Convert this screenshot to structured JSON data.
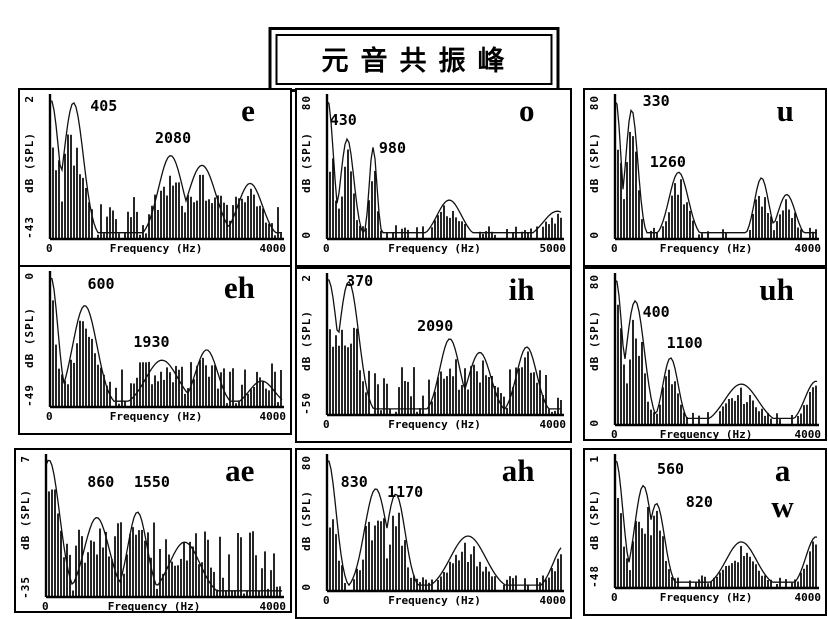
{
  "title": "元音共振峰",
  "shared": {
    "ylabel": "dB (SPL)",
    "xlabel": "Frequency (Hz)",
    "x_min": "0"
  },
  "chart_data": [
    {
      "id": "e",
      "type": "line",
      "vowel": "e",
      "title": "vowel e spectrum",
      "ylabel": "dB (SPL)",
      "xlabel": "Frequency (Hz)",
      "y_top": "2",
      "y_bottom": "-43",
      "x_min": "0",
      "x_max": "4000",
      "xlim": [
        0,
        4000
      ],
      "formants": [
        {
          "label": "405",
          "f": 405,
          "lx": 0.26,
          "ly": 0.04
        },
        {
          "label": "2080",
          "f": 2080,
          "lx": 0.5,
          "ly": 0.22
        }
      ],
      "envelope_peaks": [
        [
          15,
          1.0,
          140
        ],
        [
          405,
          0.98,
          170
        ],
        [
          2080,
          0.6,
          210
        ],
        [
          2620,
          0.53,
          240
        ],
        [
          3450,
          0.4,
          210
        ]
      ],
      "render": {
        "noise": 0.32,
        "seed": 11
      }
    },
    {
      "id": "o",
      "type": "line",
      "vowel": "o",
      "title": "vowel o spectrum",
      "ylabel": "dB (SPL)",
      "xlabel": "Frequency (Hz)",
      "y_top": "80",
      "y_bottom": "0",
      "x_min": "0",
      "x_max": "5000",
      "xlim": [
        0,
        5000
      ],
      "formants": [
        {
          "label": "430",
          "f": 430,
          "lx": 0.12,
          "ly": 0.12
        },
        {
          "label": "980",
          "f": 980,
          "lx": 0.3,
          "ly": 0.28
        }
      ],
      "envelope_peaks": [
        [
          15,
          1.0,
          120
        ],
        [
          430,
          0.72,
          140
        ],
        [
          980,
          0.66,
          80
        ],
        [
          2600,
          0.28,
          260
        ],
        [
          4900,
          0.2,
          300
        ]
      ],
      "render": {
        "noise": 0.1,
        "seed": 22
      }
    },
    {
      "id": "u",
      "type": "line",
      "vowel": "u",
      "title": "vowel u spectrum",
      "ylabel": "dB (SPL)",
      "xlabel": "Frequency (Hz)",
      "y_top": "80",
      "y_bottom": "0",
      "x_min": "0",
      "x_max": "4000",
      "xlim": [
        0,
        4000
      ],
      "formants": [
        {
          "label": "330",
          "f": 330,
          "lx": 0.24,
          "ly": 0.01
        },
        {
          "label": "1260",
          "f": 1260,
          "lx": 0.27,
          "ly": 0.36
        }
      ],
      "envelope_peaks": [
        [
          15,
          1.0,
          100
        ],
        [
          330,
          0.93,
          120
        ],
        [
          1260,
          0.48,
          190
        ],
        [
          2900,
          0.44,
          140
        ],
        [
          3400,
          0.32,
          170
        ]
      ],
      "render": {
        "noise": 0.08,
        "seed": 33
      }
    },
    {
      "id": "eh",
      "type": "line",
      "vowel": "eh",
      "title": "vowel eh spectrum",
      "ylabel": "dB (SPL)",
      "xlabel": "Frequency (Hz)",
      "y_top": "0",
      "y_bottom": "-49",
      "x_min": "0",
      "x_max": "4000",
      "xlim": [
        0,
        4000
      ],
      "formants": [
        {
          "label": "600",
          "f": 600,
          "lx": 0.25,
          "ly": 0.05
        },
        {
          "label": "1930",
          "f": 1930,
          "lx": 0.42,
          "ly": 0.4
        }
      ],
      "envelope_peaks": [
        [
          15,
          1.0,
          120
        ],
        [
          600,
          0.78,
          210
        ],
        [
          1930,
          0.36,
          280
        ],
        [
          2700,
          0.44,
          190
        ],
        [
          3650,
          0.2,
          220
        ]
      ],
      "render": {
        "noise": 0.38,
        "seed": 44
      }
    },
    {
      "id": "ih",
      "type": "line",
      "vowel": "ih",
      "title": "vowel ih spectrum",
      "ylabel": "dB (SPL)",
      "xlabel": "Frequency (Hz)",
      "y_top": "2",
      "y_bottom": "-50",
      "x_min": "0",
      "x_max": "4000",
      "xlim": [
        0,
        4000
      ],
      "formants": [
        {
          "label": "370",
          "f": 370,
          "lx": 0.18,
          "ly": 0.02
        },
        {
          "label": "2090",
          "f": 2090,
          "lx": 0.44,
          "ly": 0.28
        }
      ],
      "envelope_peaks": [
        [
          15,
          1.0,
          160
        ],
        [
          370,
          0.98,
          170
        ],
        [
          2090,
          0.56,
          170
        ],
        [
          2600,
          0.46,
          190
        ],
        [
          3400,
          0.5,
          170
        ]
      ],
      "render": {
        "noise": 0.36,
        "seed": 55
      }
    },
    {
      "id": "uh",
      "type": "line",
      "vowel": "uh",
      "title": "vowel uh spectrum",
      "ylabel": "dB (SPL)",
      "xlabel": "Frequency (Hz)",
      "y_top": "80",
      "y_bottom": "0",
      "x_min": "0",
      "x_max": "4000",
      "xlim": [
        0,
        4000
      ],
      "formants": [
        {
          "label": "400",
          "f": 400,
          "lx": 0.24,
          "ly": 0.2
        },
        {
          "label": "1100",
          "f": 1100,
          "lx": 0.34,
          "ly": 0.38
        }
      ],
      "envelope_peaks": [
        [
          15,
          1.0,
          130
        ],
        [
          400,
          0.85,
          180
        ],
        [
          1100,
          0.46,
          150
        ],
        [
          2500,
          0.28,
          330
        ],
        [
          3980,
          0.3,
          220
        ]
      ],
      "render": {
        "noise": 0.1,
        "seed": 66
      }
    },
    {
      "id": "ae",
      "type": "line",
      "vowel": "ae",
      "title": "vowel ae spectrum",
      "ylabel": "dB (SPL)",
      "xlabel": "Frequency (Hz)",
      "y_top": "7",
      "y_bottom": "-35",
      "x_min": "0",
      "x_max": "4000",
      "xlim": [
        0,
        4000
      ],
      "formants": [
        {
          "label": "860",
          "f": 860,
          "lx": 0.26,
          "ly": 0.14
        },
        {
          "label": "1550",
          "f": 1550,
          "lx": 0.43,
          "ly": 0.14
        }
      ],
      "envelope_peaks": [
        [
          50,
          1.0,
          180
        ],
        [
          860,
          0.58,
          210
        ],
        [
          1550,
          0.62,
          160
        ],
        [
          2350,
          0.4,
          260
        ]
      ],
      "render": {
        "noise": 0.55,
        "seed": 77
      }
    },
    {
      "id": "ah",
      "type": "line",
      "vowel": "ah",
      "title": "vowel ah spectrum",
      "ylabel": "dB (SPL)",
      "xlabel": "Frequency (Hz)",
      "y_top": "80",
      "y_bottom": "0",
      "x_min": "0",
      "x_max": "4000",
      "xlim": [
        0,
        4000
      ],
      "formants": [
        {
          "label": "830",
          "f": 830,
          "lx": 0.16,
          "ly": 0.14
        },
        {
          "label": "1170",
          "f": 1170,
          "lx": 0.33,
          "ly": 0.2
        }
      ],
      "envelope_peaks": [
        [
          15,
          1.0,
          140
        ],
        [
          830,
          0.78,
          190
        ],
        [
          1170,
          0.74,
          160
        ],
        [
          2400,
          0.42,
          300
        ],
        [
          4050,
          0.35,
          200
        ]
      ],
      "render": {
        "noise": 0.12,
        "seed": 88
      }
    },
    {
      "id": "aw",
      "type": "line",
      "vowel": "a\nw",
      "title": "vowel a/w spectrum",
      "ylabel": "dB (SPL)",
      "xlabel": "Frequency (Hz)",
      "y_top": "1",
      "y_bottom": "-48",
      "x_min": "0",
      "x_max": "4000",
      "xlim": [
        0,
        4000
      ],
      "formants": [
        {
          "label": "560",
          "f": 560,
          "lx": 0.3,
          "ly": 0.06
        },
        {
          "label": "820",
          "f": 820,
          "lx": 0.42,
          "ly": 0.26
        }
      ],
      "envelope_peaks": [
        [
          15,
          1.0,
          140
        ],
        [
          560,
          0.8,
          170
        ],
        [
          820,
          0.66,
          160
        ],
        [
          2500,
          0.36,
          300
        ],
        [
          3980,
          0.4,
          200
        ]
      ],
      "render": {
        "noise": 0.1,
        "seed": 99
      }
    }
  ]
}
